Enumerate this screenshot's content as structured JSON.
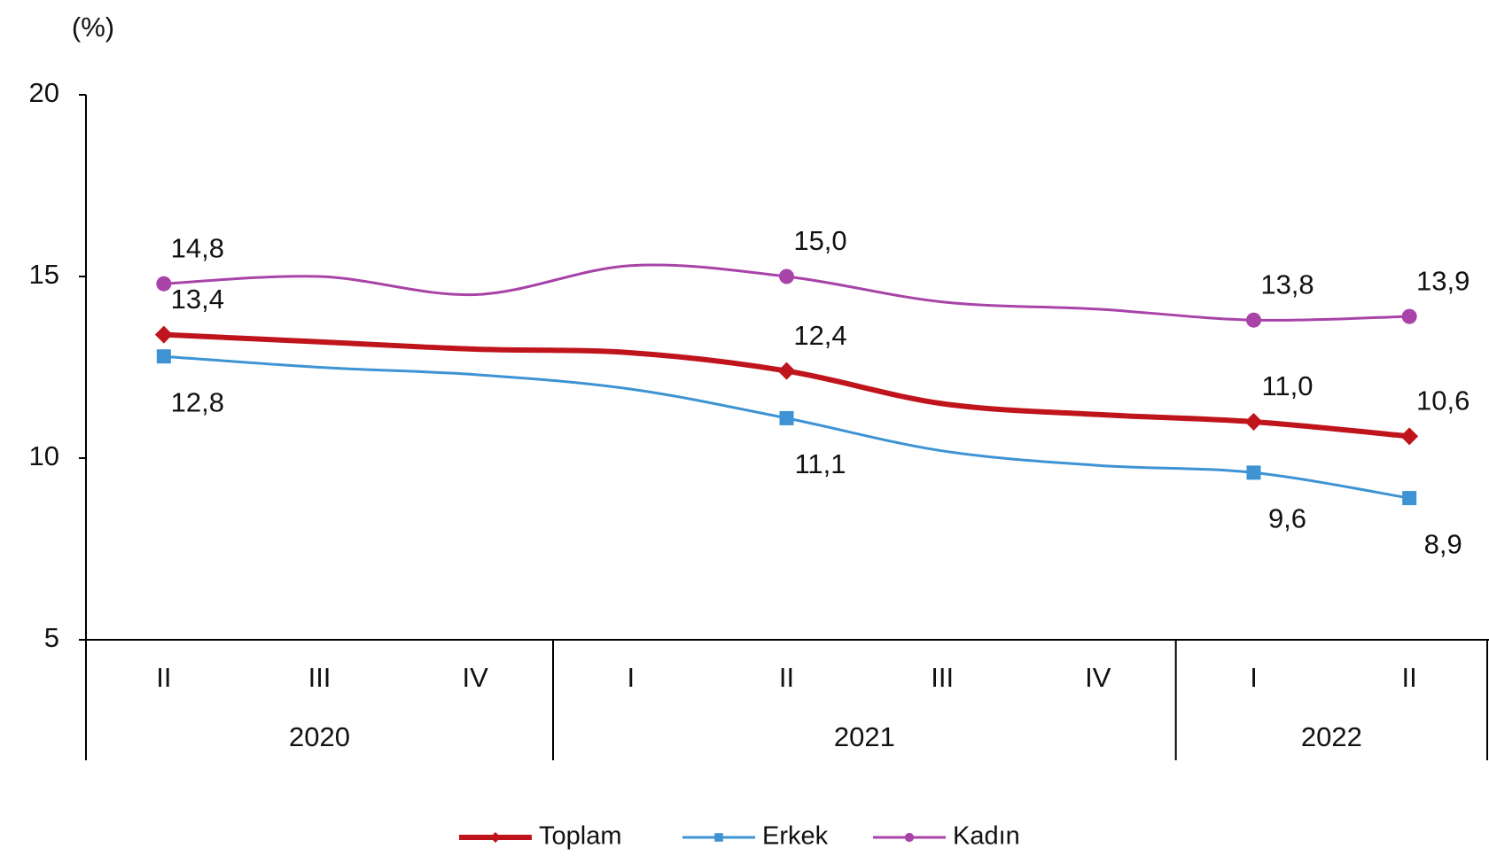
{
  "chart_data": {
    "type": "line",
    "y_label": "(%)",
    "categories": [
      "II",
      "III",
      "IV",
      "I",
      "II",
      "III",
      "IV",
      "I",
      "II"
    ],
    "groups": [
      {
        "label": "2020",
        "count": 3
      },
      {
        "label": "2021",
        "count": 4
      },
      {
        "label": "2022",
        "count": 2
      }
    ],
    "series": [
      {
        "name": "Toplam",
        "color": "#c0141c",
        "marker": "diamond",
        "label_side": "above",
        "values": [
          13.4,
          13.2,
          13.0,
          12.9,
          12.4,
          11.5,
          11.2,
          11.0,
          10.6
        ],
        "value_labels": [
          "13,4",
          null,
          null,
          null,
          "12,4",
          null,
          null,
          "11,0",
          "10,6"
        ]
      },
      {
        "name": "Erkek",
        "color": "#3d93d3",
        "marker": "square",
        "label_side": "below",
        "values": [
          12.8,
          12.5,
          12.3,
          11.9,
          11.1,
          10.2,
          9.8,
          9.6,
          8.9
        ],
        "value_labels": [
          "12,8",
          null,
          null,
          null,
          "11,1",
          null,
          null,
          "9,6",
          "8,9"
        ]
      },
      {
        "name": "Kadın",
        "color": "#a843a8",
        "marker": "circle",
        "label_side": "above",
        "values": [
          14.8,
          15.0,
          14.5,
          15.3,
          15.0,
          14.3,
          14.1,
          13.8,
          13.9
        ],
        "value_labels": [
          "14,8",
          null,
          null,
          null,
          "15,0",
          null,
          null,
          "13,8",
          "13,9"
        ]
      }
    ],
    "ylim": [
      5,
      20
    ],
    "yticks": [
      5,
      10,
      15,
      20
    ],
    "legend": "bottom"
  }
}
